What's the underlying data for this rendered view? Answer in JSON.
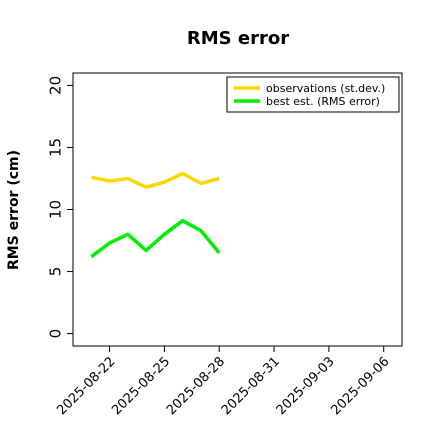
{
  "chart_data": {
    "type": "line",
    "title": "RMS error",
    "ylabel": "RMS error (cm)",
    "xlabel": "",
    "ylim": [
      -1,
      21
    ],
    "yticks": [
      0,
      5,
      10,
      15,
      20
    ],
    "xlim": [
      "2025-08-20",
      "2025-09-07"
    ],
    "xticks": [
      {
        "label": "2025-08-22",
        "date": "2025-08-22",
        "color": "#000000"
      },
      {
        "label": "2025-08-25",
        "date": "2025-08-25",
        "color": "#000000"
      },
      {
        "label": "2025-08-28",
        "date": "2025-08-28",
        "color": "#228B22"
      },
      {
        "label": "2025-08-31",
        "date": "2025-08-31",
        "color": "#000000"
      },
      {
        "label": "2025-09-03",
        "date": "2025-09-03",
        "color": "#000000"
      },
      {
        "label": "2025-09-06",
        "date": "2025-09-06",
        "color": "#000000"
      }
    ],
    "x": [
      "2025-08-21",
      "2025-08-22",
      "2025-08-23",
      "2025-08-24",
      "2025-08-25",
      "2025-08-26",
      "2025-08-27",
      "2025-08-28"
    ],
    "series": [
      {
        "name": "observations (st.dev.)",
        "color": "#FFD700",
        "values": [
          12.6,
          12.3,
          12.5,
          11.8,
          12.2,
          12.9,
          12.1,
          12.5
        ]
      },
      {
        "name": "best est. (RMS error)",
        "color": "#00EE00",
        "values": [
          6.2,
          7.3,
          8.0,
          6.7,
          8.0,
          9.1,
          8.3,
          6.5
        ]
      }
    ],
    "legend_position": "top-right",
    "grid": false
  }
}
